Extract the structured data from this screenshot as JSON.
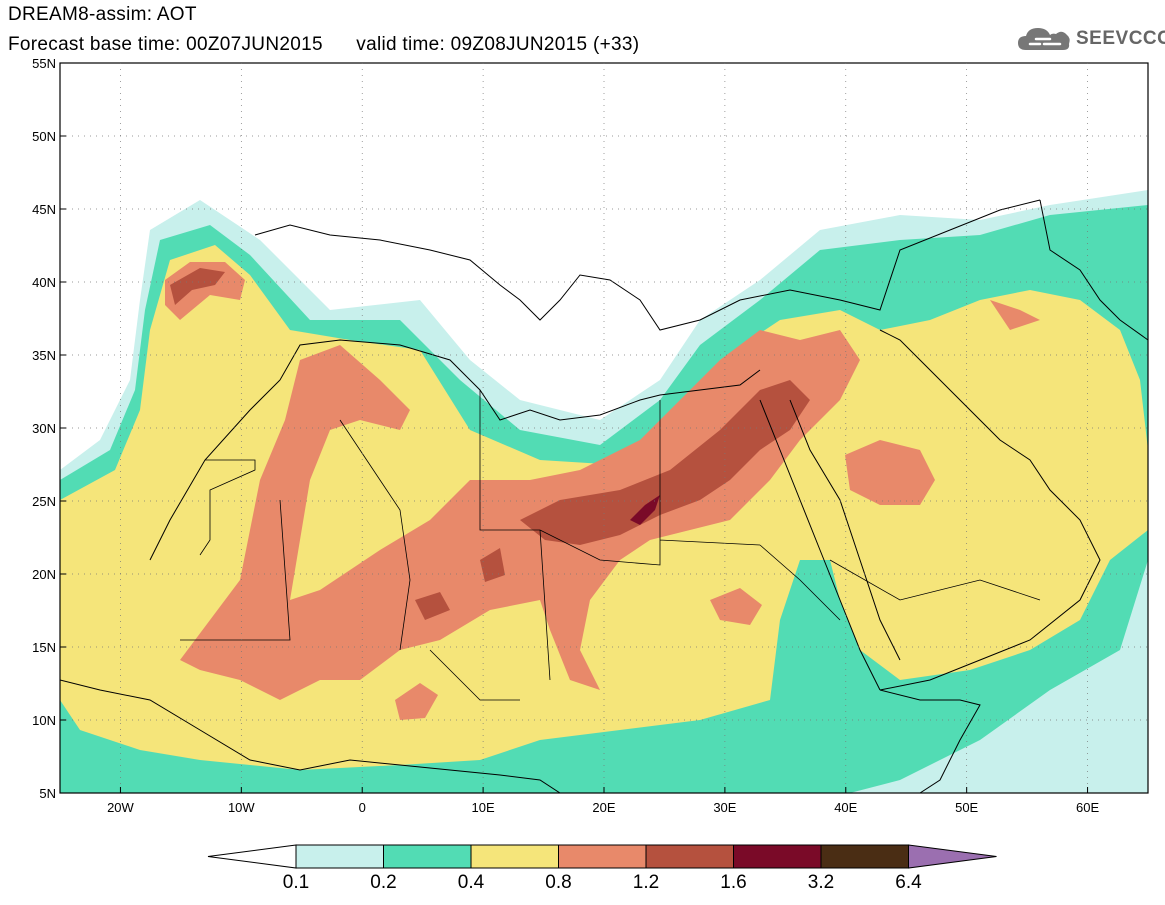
{
  "title": {
    "line1": "DREAM8-assim: AOT",
    "line2": "Forecast base time: 00Z07JUN2015      valid time: 09Z08JUN2015 (+33)"
  },
  "logo": {
    "text": "SEEVCCC",
    "icon": "cloud-icon"
  },
  "map": {
    "lon_range": [
      -25,
      65
    ],
    "lat_range": [
      5,
      55
    ],
    "lat_ticks": [
      "5N",
      "10N",
      "15N",
      "20N",
      "25N",
      "30N",
      "35N",
      "40N",
      "45N",
      "50N",
      "55N"
    ],
    "lon_ticks": [
      "20W",
      "10W",
      "0",
      "10E",
      "20E",
      "30E",
      "40E",
      "50E",
      "60E"
    ]
  },
  "colorbar": {
    "labels": [
      "0.1",
      "0.2",
      "0.4",
      "0.8",
      "1.2",
      "1.6",
      "3.2",
      "6.4"
    ],
    "colors": [
      "#ffffff",
      "#c8f0ec",
      "#52dcb4",
      "#f5e57a",
      "#e8896a",
      "#b5513e",
      "#7a0a28",
      "#4a2d14",
      "#9b6fb0"
    ]
  }
}
